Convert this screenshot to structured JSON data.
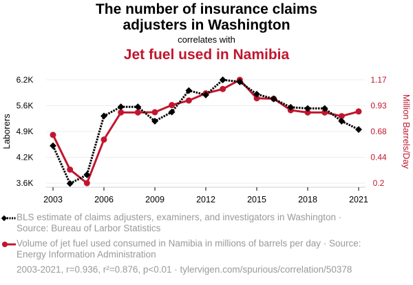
{
  "title_line1": "The number of insurance claims",
  "title_line2": "adjusters in Washington",
  "correlates": "correlates with",
  "title2": "Jet fuel used in Namibia",
  "footer": "2003-2021, r=0.936, r²=0.876, p<0.01 · tylervigen.com/spurious/correlation/50378",
  "colors": {
    "series1": "#000000",
    "series2": "#c0162e",
    "grid": "#eeeeee"
  },
  "chart_data": {
    "type": "line",
    "x": [
      2003,
      2004,
      2005,
      2006,
      2007,
      2008,
      2009,
      2010,
      2011,
      2012,
      2013,
      2014,
      2015,
      2016,
      2017,
      2018,
      2019,
      2020,
      2021
    ],
    "xticks": [
      "2003",
      "2006",
      "2009",
      "2012",
      "2015",
      "2018",
      "2021"
    ],
    "ylabel_left": "Laborers",
    "ylabel_right": "Million Barrels/Day",
    "ylim_left": [
      3600,
      6200
    ],
    "ylim_right": [
      0.2,
      1.17
    ],
    "yticks_left": [
      "6.2K",
      "5.6K",
      "4.9K",
      "4.2K",
      "3.6K"
    ],
    "yticks_right": [
      "1.17",
      "0.93",
      "0.68",
      "0.44",
      "0.2"
    ],
    "series": [
      {
        "name": "BLS estimate of claims adjusters, examiners, and investigators in Washington · Source: Bureau of Larbor Statistics",
        "axis": "left",
        "values": [
          4540,
          3590,
          3810,
          5290,
          5520,
          5520,
          5160,
          5390,
          5930,
          5820,
          6200,
          6150,
          5840,
          5720,
          5510,
          5480,
          5480,
          5160,
          4950
        ]
      },
      {
        "name": "Volume of jet fuel used consumed in Namibia in millions of barrels per day · Source: Energy Information Administration",
        "axis": "right",
        "values": [
          0.653,
          0.327,
          0.2,
          0.609,
          0.864,
          0.864,
          0.866,
          0.933,
          0.976,
          1.043,
          1.084,
          1.17,
          0.997,
          0.993,
          0.885,
          0.864,
          0.864,
          0.829,
          0.873
        ]
      }
    ]
  }
}
